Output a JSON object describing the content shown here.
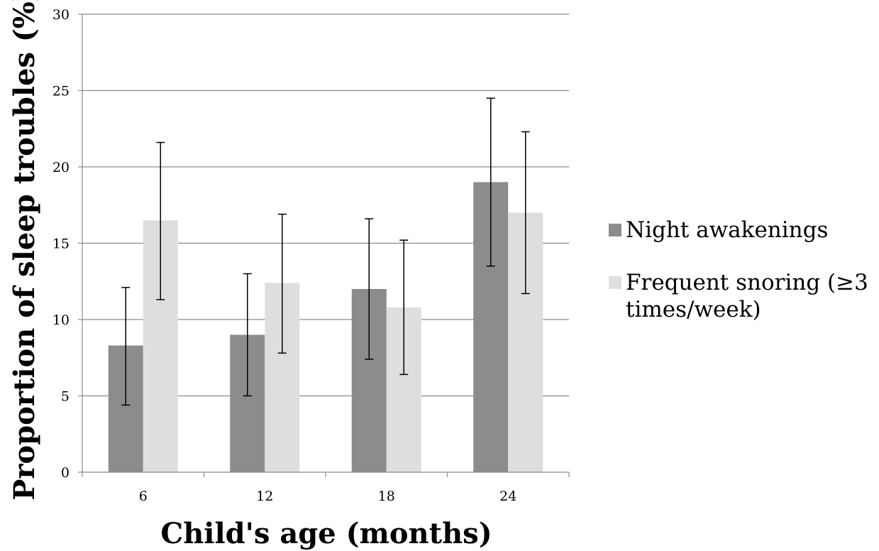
{
  "chart_data": {
    "type": "bar",
    "xlabel": "Child's age (months)",
    "ylabel": "Proportion of sleep troubles (%)",
    "categories": [
      "6",
      "12",
      "18",
      "24"
    ],
    "ylim": [
      0,
      30
    ],
    "yticks": [
      "0",
      "5",
      "10",
      "15",
      "20",
      "25",
      "30"
    ],
    "grid": true,
    "legend_position": "right",
    "series": [
      {
        "name": "Night awakenings",
        "color": "#8c8c8c",
        "values": [
          8.3,
          9.0,
          12.0,
          19.0
        ],
        "error_low": [
          4.4,
          5.0,
          7.4,
          13.5
        ],
        "error_high": [
          12.1,
          13.0,
          16.6,
          24.5
        ]
      },
      {
        "name": "Frequent snoring (≥3 times/week)",
        "color": "#dedede",
        "values": [
          16.5,
          12.4,
          10.8,
          17.0
        ],
        "error_low": [
          11.3,
          7.8,
          6.4,
          11.7
        ],
        "error_high": [
          21.6,
          16.9,
          15.2,
          22.3
        ]
      }
    ]
  }
}
